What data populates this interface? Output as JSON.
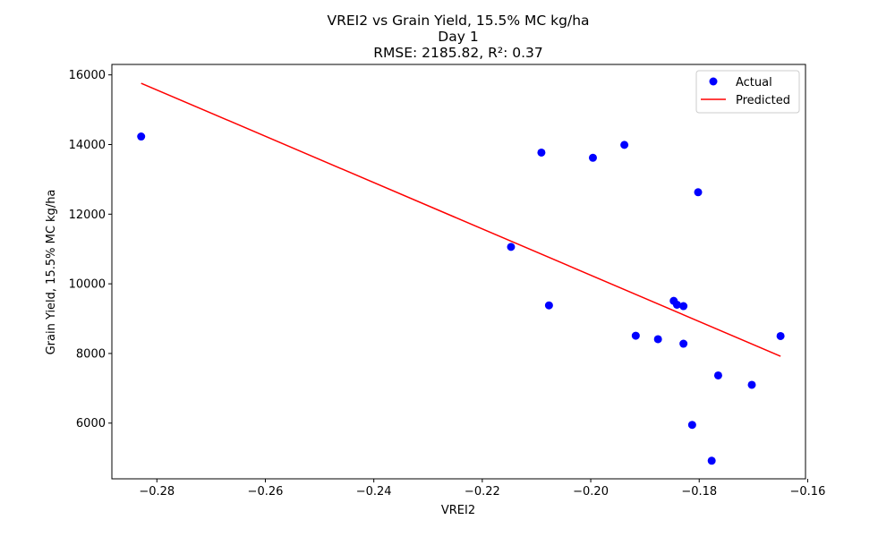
{
  "chart_data": {
    "type": "scatter",
    "title_lines": [
      "VREI2 vs Grain Yield, 15.5% MC kg/ha",
      "Day 1",
      "RMSE: 2185.82, R²: 0.37"
    ],
    "xlabel": "VREI2",
    "ylabel": "Grain Yield, 15.5% MC kg/ha",
    "xlim": [
      -0.2883,
      -0.1604
    ],
    "ylim": [
      4400,
      16300
    ],
    "xticks": [
      -0.28,
      -0.26,
      -0.24,
      -0.22,
      -0.2,
      -0.18,
      -0.16
    ],
    "xtick_labels": [
      "−0.28",
      "−0.26",
      "−0.24",
      "−0.22",
      "−0.20",
      "−0.18",
      "−0.16"
    ],
    "yticks": [
      6000,
      8000,
      10000,
      12000,
      14000,
      16000
    ],
    "ytick_labels": [
      "6000",
      "8000",
      "10000",
      "12000",
      "14000",
      "16000"
    ],
    "grid": false,
    "legend_position": "top-right",
    "series": [
      {
        "name": "Actual",
        "kind": "scatter",
        "color": "#0000ff",
        "points": [
          {
            "x": -0.2829,
            "y": 14230
          },
          {
            "x": -0.2147,
            "y": 11060
          },
          {
            "x": -0.2091,
            "y": 13770
          },
          {
            "x": -0.2077,
            "y": 9380
          },
          {
            "x": -0.1996,
            "y": 13620
          },
          {
            "x": -0.1938,
            "y": 13990
          },
          {
            "x": -0.1917,
            "y": 8510
          },
          {
            "x": -0.1876,
            "y": 8410
          },
          {
            "x": -0.1847,
            "y": 9510
          },
          {
            "x": -0.1841,
            "y": 9400
          },
          {
            "x": -0.1829,
            "y": 9360
          },
          {
            "x": -0.1829,
            "y": 8280
          },
          {
            "x": -0.1813,
            "y": 5950
          },
          {
            "x": -0.1802,
            "y": 12630
          },
          {
            "x": -0.1777,
            "y": 4920
          },
          {
            "x": -0.1765,
            "y": 7370
          },
          {
            "x": -0.1703,
            "y": 7100
          },
          {
            "x": -0.165,
            "y": 8500
          }
        ]
      },
      {
        "name": "Predicted",
        "kind": "line",
        "color": "#ff0000",
        "points": [
          {
            "x": -0.2829,
            "y": 15760
          },
          {
            "x": -0.165,
            "y": 7920
          }
        ]
      }
    ]
  }
}
